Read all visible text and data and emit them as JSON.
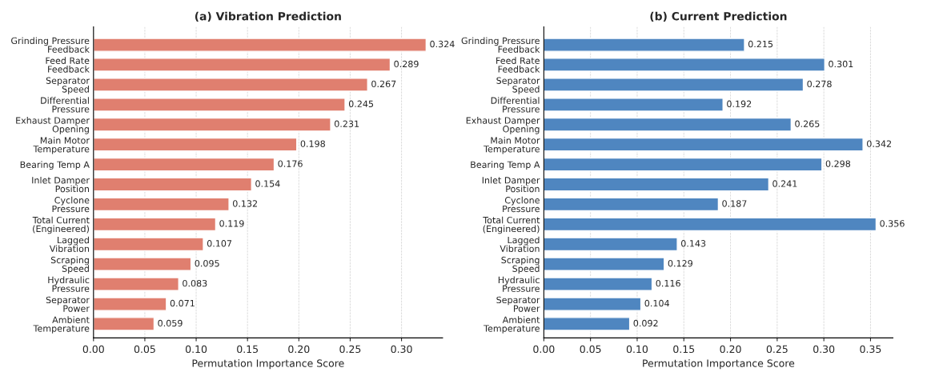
{
  "chart_data": [
    {
      "type": "bar",
      "orientation": "horizontal",
      "title": "(a) Vibration Prediction",
      "xlabel": "Permutation Importance Score",
      "categories": [
        "Grinding Pressure\nFeedback",
        "Feed Rate\nFeedback",
        "Separator\nSpeed",
        "Differential\nPressure",
        "Exhaust Damper\nOpening",
        "Main Motor\nTemperature",
        "Bearing Temp A",
        "Inlet Damper\nPosition",
        "Cyclone\nPressure",
        "Total Current\n(Engineered)",
        "Lagged\nVibration",
        "Scraping\nSpeed",
        "Hydraulic\nPressure",
        "Separator\nPower",
        "Ambient\nTemperature"
      ],
      "values": [
        0.324,
        0.289,
        0.267,
        0.245,
        0.231,
        0.198,
        0.176,
        0.154,
        0.132,
        0.119,
        0.107,
        0.095,
        0.083,
        0.071,
        0.059
      ],
      "color": "#e07f6f",
      "data_labels": true,
      "grid": "x",
      "xlim": [
        0,
        0.34
      ],
      "xticks": [
        {
          "value": 0,
          "label": "0.00"
        },
        {
          "value": 0.05,
          "label": "0.05"
        },
        {
          "value": 0.1,
          "label": "0.10"
        },
        {
          "value": 0.15,
          "label": "0.15"
        },
        {
          "value": 0.2,
          "label": "0.20"
        },
        {
          "value": 0.25,
          "label": "0.25"
        },
        {
          "value": 0.3,
          "label": "0.30"
        }
      ]
    },
    {
      "type": "bar",
      "orientation": "horizontal",
      "title": "(b) Current Prediction",
      "xlabel": "Permutation Importance Score",
      "categories": [
        "Grinding Pressure\nFeedback",
        "Feed Rate\nFeedback",
        "Separator\nSpeed",
        "Differential\nPressure",
        "Exhaust Damper\nOpening",
        "Main Motor\nTemperature",
        "Bearing Temp A",
        "Inlet Damper\nPosition",
        "Cyclone\nPressure",
        "Total Current\n(Engineered)",
        "Lagged\nVibration",
        "Scraping\nSpeed",
        "Hydraulic\nPressure",
        "Separator\nPower",
        "Ambient\nTemperature"
      ],
      "values": [
        0.215,
        0.301,
        0.278,
        0.192,
        0.265,
        0.342,
        0.298,
        0.241,
        0.187,
        0.356,
        0.143,
        0.129,
        0.116,
        0.104,
        0.092
      ],
      "color": "#4f86c0",
      "data_labels": true,
      "grid": "x",
      "xlim": [
        0,
        0.374
      ],
      "xticks": [
        {
          "value": 0,
          "label": "0.00"
        },
        {
          "value": 0.05,
          "label": "0.05"
        },
        {
          "value": 0.1,
          "label": "0.10"
        },
        {
          "value": 0.15,
          "label": "0.15"
        },
        {
          "value": 0.2,
          "label": "0.20"
        },
        {
          "value": 0.25,
          "label": "0.25"
        },
        {
          "value": 0.3,
          "label": "0.30"
        },
        {
          "value": 0.35,
          "label": "0.35"
        }
      ]
    }
  ]
}
